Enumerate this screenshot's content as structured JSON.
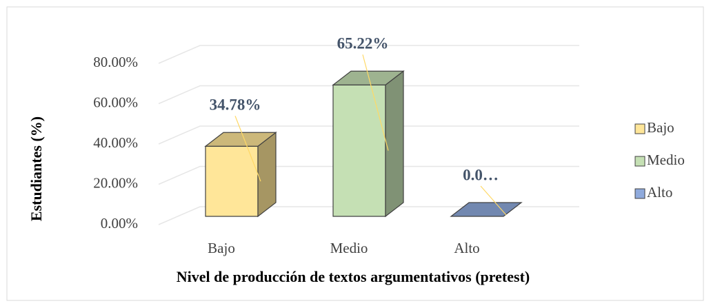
{
  "chart_data": {
    "type": "bar3d",
    "y_axis_label": "Estudiantes (%)",
    "x_axis_label": "Nivel de producción de textos argumentativos (pretest)",
    "categories": [
      "Bajo",
      "Medio",
      "Alto"
    ],
    "values": [
      34.78,
      65.22,
      0
    ],
    "value_labels": [
      "34.78%",
      "65.22%",
      "0.0…"
    ],
    "colors": [
      "#ffe699",
      "#c5e0b4",
      "#8faadc"
    ],
    "ylim": [
      0,
      80
    ],
    "yticks": [
      {
        "value": 0,
        "label": "0.00%"
      },
      {
        "value": 20,
        "label": "20.00%"
      },
      {
        "value": 40,
        "label": "40.00%"
      },
      {
        "value": 60,
        "label": "60.00%"
      },
      {
        "value": 80,
        "label": "80.00%"
      }
    ],
    "grid": true,
    "legend": "right"
  }
}
